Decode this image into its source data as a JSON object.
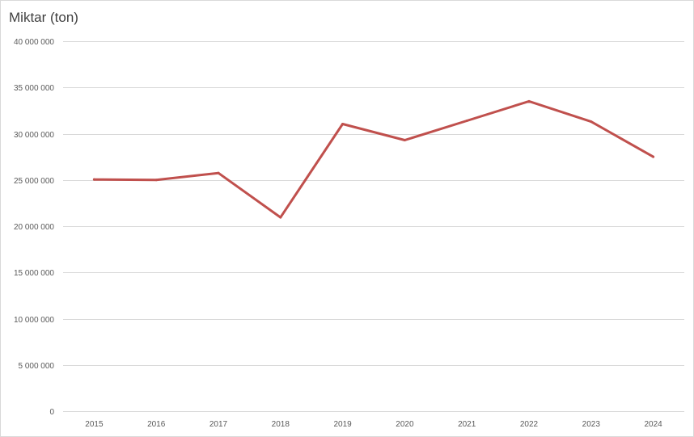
{
  "chart_data": {
    "type": "line",
    "title": "Miktar (ton)",
    "x": [
      "2015",
      "2016",
      "2017",
      "2018",
      "2019",
      "2020",
      "2021",
      "2022",
      "2023",
      "2024"
    ],
    "series": [
      {
        "values": [
          25050000,
          25000000,
          25750000,
          20950000,
          31050000,
          29300000,
          31400000,
          33500000,
          31300000,
          27500000
        ],
        "color": "#c0504d"
      }
    ],
    "ylim": [
      0,
      40000000
    ],
    "yticks": [
      {
        "value": 0,
        "label": "0"
      },
      {
        "value": 5000000,
        "label": "5 000 000"
      },
      {
        "value": 10000000,
        "label": "10 000 000"
      },
      {
        "value": 15000000,
        "label": "15 000 000"
      },
      {
        "value": 20000000,
        "label": "20 000 000"
      },
      {
        "value": 25000000,
        "label": "25 000 000"
      },
      {
        "value": 30000000,
        "label": "30 000 000"
      },
      {
        "value": 35000000,
        "label": "35 000 000"
      },
      {
        "value": 40000000,
        "label": "40 000 000"
      }
    ],
    "grid": true,
    "legend": "none",
    "gridline_color": "#d9d9d9"
  }
}
